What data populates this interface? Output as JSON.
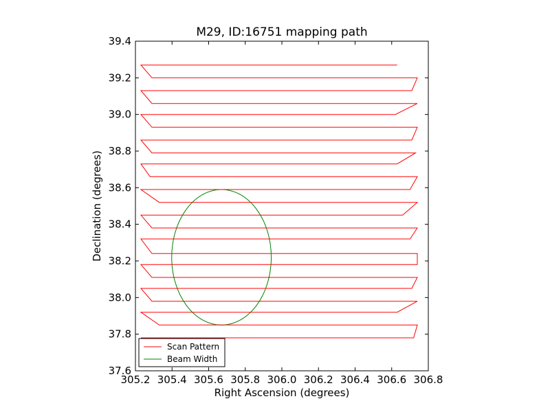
{
  "chart_data": {
    "type": "line",
    "title": "M29, ID:16751 mapping path",
    "xlabel": "Right Ascension (degrees)",
    "ylabel": "Declination (degrees)",
    "xlim": [
      305.2,
      306.8
    ],
    "ylim": [
      37.6,
      39.4
    ],
    "xticks": [
      "305.2",
      "305.4",
      "305.6",
      "305.8",
      "306.0",
      "306.2",
      "306.4",
      "306.6",
      "306.8"
    ],
    "yticks": [
      "37.6",
      "37.8",
      "38.0",
      "38.2",
      "38.4",
      "38.6",
      "38.8",
      "39.0",
      "39.2",
      "39.4"
    ],
    "grid": false,
    "legend_position": "lower-left",
    "series": [
      {
        "name": "Scan Pattern",
        "color": "#ff0000",
        "x": [
          306.63,
          305.23,
          305.29,
          306.74,
          306.71,
          305.23,
          305.29,
          306.74,
          306.62,
          305.23,
          305.29,
          306.74,
          306.71,
          305.23,
          305.29,
          306.73,
          306.63,
          305.23,
          305.28,
          306.74,
          306.7,
          305.23,
          305.33,
          306.74,
          306.66,
          305.23,
          305.29,
          306.74,
          306.7,
          305.23,
          305.29,
          306.74,
          306.74,
          305.23,
          305.29,
          306.74,
          306.71,
          305.23,
          305.29,
          306.74,
          306.63,
          305.23,
          305.33,
          306.74,
          306.72,
          305.23
        ],
        "y": [
          39.27,
          39.27,
          39.2,
          39.2,
          39.13,
          39.13,
          39.06,
          39.06,
          39.0,
          39.0,
          38.93,
          38.93,
          38.86,
          38.86,
          38.79,
          38.79,
          38.73,
          38.73,
          38.66,
          38.66,
          38.59,
          38.59,
          38.52,
          38.52,
          38.45,
          38.45,
          38.38,
          38.38,
          38.32,
          38.32,
          38.24,
          38.24,
          38.18,
          38.18,
          38.11,
          38.11,
          38.05,
          38.05,
          37.98,
          37.98,
          37.92,
          37.92,
          37.85,
          37.85,
          37.78,
          37.78
        ]
      },
      {
        "name": "Beam Width",
        "color": "#008000",
        "shape": "circle",
        "center": [
          305.67,
          38.22
        ],
        "radius_deg": 0.37
      }
    ],
    "legend": {
      "entries": [
        "Scan Pattern",
        "Beam Width"
      ]
    }
  }
}
